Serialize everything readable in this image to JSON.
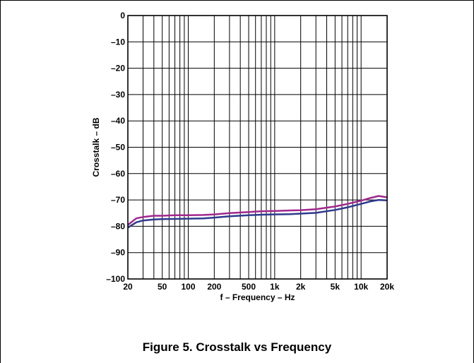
{
  "caption": "Figure 5. Crosstalk vs Frequency",
  "chart_data": {
    "type": "line",
    "title": "",
    "xlabel": "f – Frequency – Hz",
    "ylabel": "Crosstalk – dB",
    "xscale": "log",
    "xlim": [
      20,
      20000
    ],
    "ylim": [
      -100,
      0
    ],
    "grid": true,
    "x_ticks": [
      {
        "value": 20,
        "label": "20"
      },
      {
        "value": 50,
        "label": "50"
      },
      {
        "value": 100,
        "label": "100"
      },
      {
        "value": 200,
        "label": "200"
      },
      {
        "value": 500,
        "label": "500"
      },
      {
        "value": 1000,
        "label": "1k"
      },
      {
        "value": 2000,
        "label": "2k"
      },
      {
        "value": 5000,
        "label": "5k"
      },
      {
        "value": 10000,
        "label": "10k"
      },
      {
        "value": 20000,
        "label": "20k"
      }
    ],
    "y_ticks": [
      {
        "value": 0,
        "label": "0"
      },
      {
        "value": -10,
        "label": "–10"
      },
      {
        "value": -20,
        "label": "–20"
      },
      {
        "value": -30,
        "label": "–30"
      },
      {
        "value": -40,
        "label": "–40"
      },
      {
        "value": -50,
        "label": "–50"
      },
      {
        "value": -60,
        "label": "–60"
      },
      {
        "value": -70,
        "label": "–70"
      },
      {
        "value": -80,
        "label": "–80"
      },
      {
        "value": -90,
        "label": "–90"
      },
      {
        "value": -100,
        "label": "–100"
      }
    ],
    "x": [
      20,
      25,
      30,
      40,
      50,
      70,
      100,
      150,
      200,
      300,
      500,
      700,
      1000,
      1500,
      2000,
      3000,
      5000,
      7000,
      10000,
      13000,
      16000,
      20000
    ],
    "series": [
      {
        "color": "#a0288c",
        "values": [
          -79.5,
          -77.0,
          -76.5,
          -76.0,
          -76.0,
          -75.8,
          -75.8,
          -75.7,
          -75.5,
          -75.0,
          -74.6,
          -74.3,
          -74.2,
          -74.0,
          -73.9,
          -73.5,
          -72.5,
          -71.5,
          -70.3,
          -69.2,
          -68.5,
          -69.0
        ]
      },
      {
        "color": "#2e3a8c",
        "values": [
          -80.5,
          -78.5,
          -77.8,
          -77.4,
          -77.3,
          -77.2,
          -77.1,
          -77.0,
          -76.7,
          -76.2,
          -75.8,
          -75.6,
          -75.5,
          -75.4,
          -75.2,
          -74.9,
          -73.8,
          -72.8,
          -71.5,
          -70.5,
          -70.0,
          -70.2
        ]
      }
    ]
  }
}
